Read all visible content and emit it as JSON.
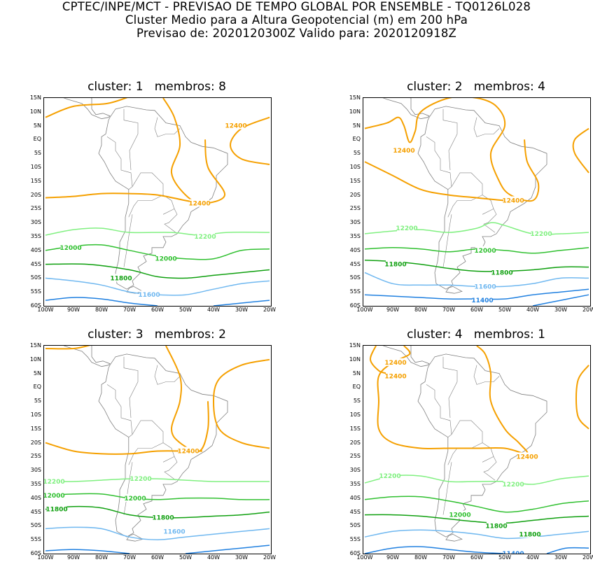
{
  "header": {
    "line1": "CPTEC/INPE/MCT - PREVISAO DE TEMPO GLOBAL POR ENSEMBLE - TQ0126L028",
    "line2": "Cluster Medio para a Altura Geopotencial (m) em 200 hPa",
    "line3": "Previsao de: 2020120300Z   Valido para: 2020120918Z"
  },
  "lat_labels": [
    "15N",
    "10N",
    "5N",
    "EQ",
    "5S",
    "10S",
    "15S",
    "20S",
    "25S",
    "30S",
    "35S",
    "40S",
    "45S",
    "50S",
    "55S",
    "60S"
  ],
  "lon_labels": [
    "100W",
    "90W",
    "80W",
    "70W",
    "60W",
    "50W",
    "40W",
    "30W",
    "20W"
  ],
  "colors": {
    "c12400": "#f5a000",
    "c12200": "#80f080",
    "c12000": "#30c030",
    "c11800": "#10a010",
    "c11600": "#70b8f0",
    "c11400": "#2080e0",
    "land": "#808080"
  },
  "panels": [
    {
      "title": "cluster: 1   membros: 8",
      "labels": [
        {
          "text": "12400",
          "c": "c12400"
        },
        {
          "text": "12400",
          "c": "c12400"
        },
        {
          "text": "12200",
          "c": "c12200"
        },
        {
          "text": "12000",
          "c": "c12000"
        },
        {
          "text": "12000",
          "c": "c12000"
        },
        {
          "text": "11800",
          "c": "c11800"
        },
        {
          "text": "11600",
          "c": "c11600"
        }
      ]
    },
    {
      "title": "cluster: 2   membros: 4",
      "labels": [
        {
          "text": "12400",
          "c": "c12400"
        },
        {
          "text": "12400",
          "c": "c12400"
        },
        {
          "text": "12200",
          "c": "c12200"
        },
        {
          "text": "12200",
          "c": "c12200"
        },
        {
          "text": "12000",
          "c": "c12000"
        },
        {
          "text": "11800",
          "c": "c11800"
        },
        {
          "text": "11800",
          "c": "c11800"
        },
        {
          "text": "11600",
          "c": "c11600"
        },
        {
          "text": "11400",
          "c": "c11400"
        }
      ]
    },
    {
      "title": "cluster: 3   membros: 2",
      "labels": [
        {
          "text": "12400",
          "c": "c12400"
        },
        {
          "text": "12200",
          "c": "c12200"
        },
        {
          "text": "12200",
          "c": "c12200"
        },
        {
          "text": "12000",
          "c": "c12000"
        },
        {
          "text": "12000",
          "c": "c12000"
        },
        {
          "text": "11800",
          "c": "c11800"
        },
        {
          "text": "11800",
          "c": "c11800"
        },
        {
          "text": "11600",
          "c": "c11600"
        }
      ]
    },
    {
      "title": "cluster: 4   membros: 1",
      "labels": [
        {
          "text": "12400",
          "c": "c12400"
        },
        {
          "text": "12400",
          "c": "c12400"
        },
        {
          "text": "12400",
          "c": "c12400"
        },
        {
          "text": "12200",
          "c": "c12200"
        },
        {
          "text": "12200",
          "c": "c12200"
        },
        {
          "text": "12000",
          "c": "c12000"
        },
        {
          "text": "11800",
          "c": "c11800"
        },
        {
          "text": "11800",
          "c": "c11800"
        },
        {
          "text": "11400",
          "c": "c11400"
        }
      ]
    }
  ]
}
